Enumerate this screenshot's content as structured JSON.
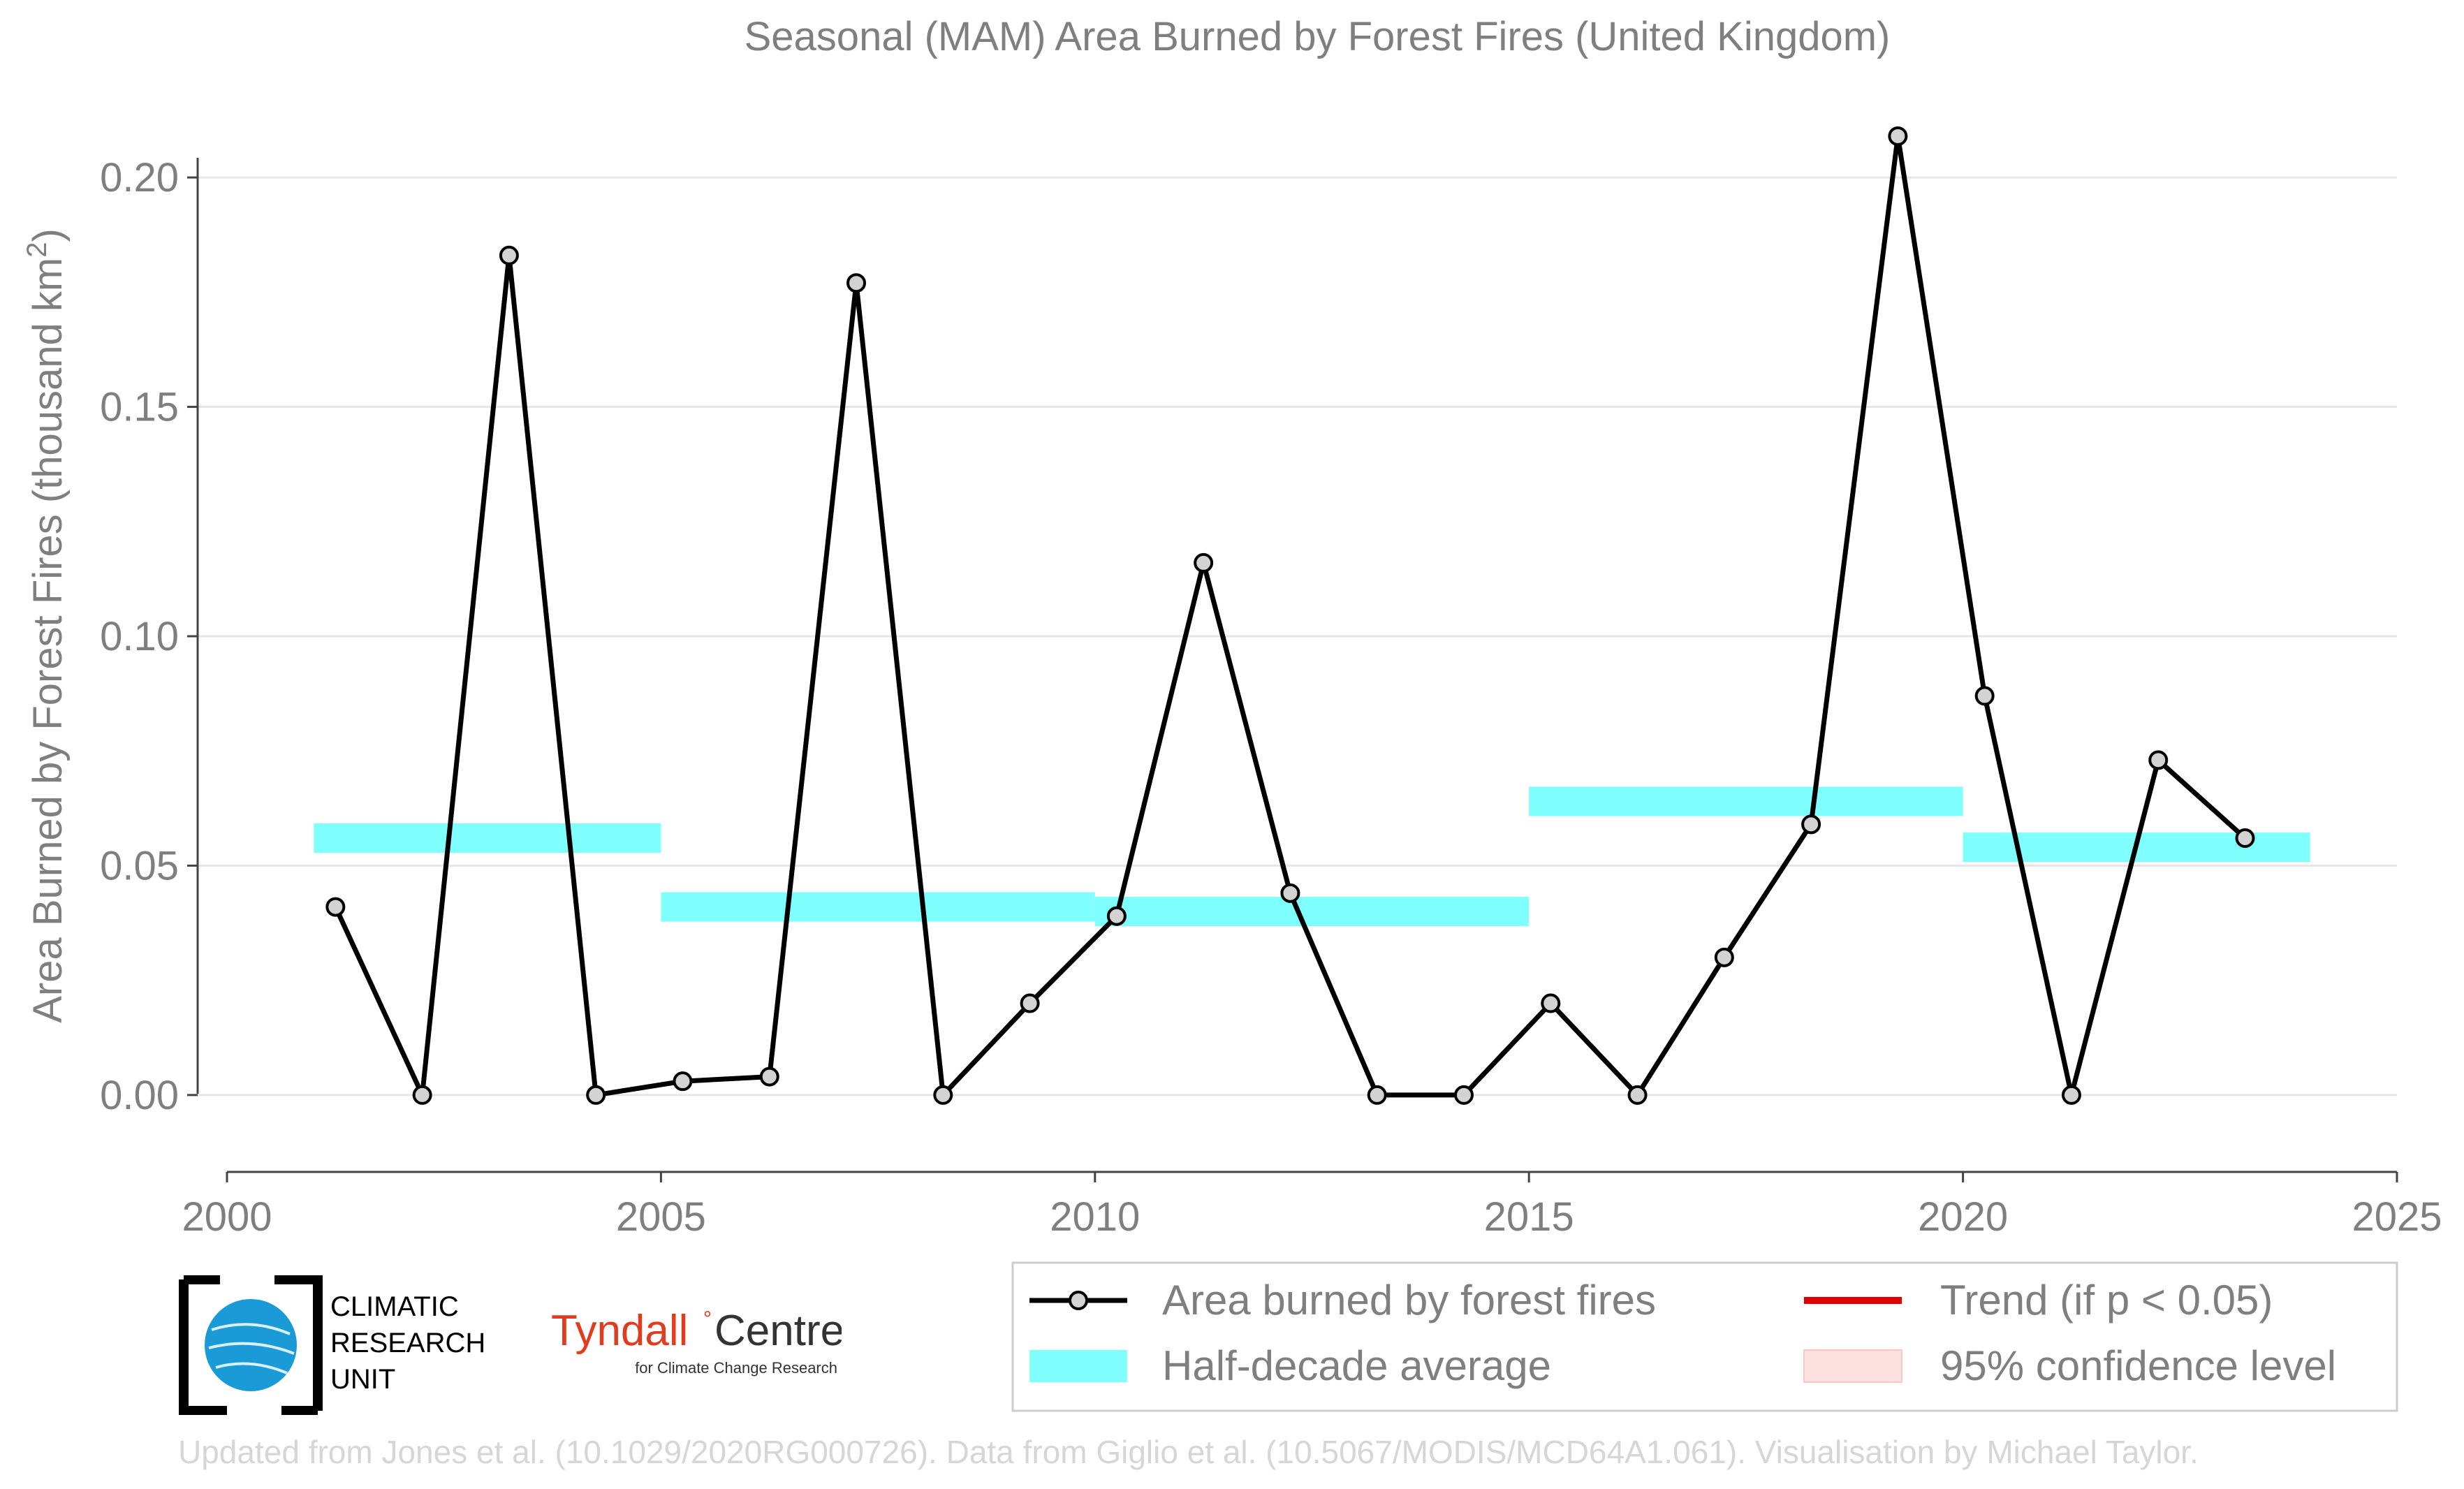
{
  "chart_data": {
    "type": "line",
    "title": "Seasonal (MAM) Area Burned by Forest Fires (United Kingdom)",
    "ylabel": "Area Burned by Forest Fires (thousand km²)",
    "xlabel": "",
    "xlim": [
      2000,
      2025
    ],
    "ylim": [
      -0.0125,
      0.2125
    ],
    "x_ticks": [
      "2000",
      "2005",
      "2010",
      "2015",
      "2020",
      "2025"
    ],
    "y_ticks": [
      "0.00",
      "0.05",
      "0.10",
      "0.15",
      "0.20"
    ],
    "grid": "horizontal",
    "series": [
      {
        "name": "Area burned by forest fires",
        "color": "#000000",
        "marker_color": "#d3d3d3",
        "x": [
          2001.25,
          2002.25,
          2003.25,
          2004.25,
          2005.25,
          2006.25,
          2007.25,
          2008.25,
          2009.25,
          2010.25,
          2011.25,
          2012.25,
          2013.25,
          2014.25,
          2015.25,
          2016.25,
          2017.25,
          2018.25,
          2019.25,
          2020.25,
          2021.25,
          2022.25,
          2023.25
        ],
        "values": [
          0.041,
          0.0,
          0.183,
          0.0,
          0.003,
          0.004,
          0.177,
          0.0,
          0.02,
          0.039,
          0.116,
          0.044,
          0.0,
          0.0,
          0.02,
          0.0,
          0.03,
          0.059,
          0.209,
          0.087,
          0.0,
          0.073,
          0.056
        ]
      }
    ],
    "half_decade_average": {
      "name": "Half-decade average",
      "color": "#80ffff",
      "segments": [
        {
          "x0": 2001,
          "x1": 2005,
          "value": 0.056
        },
        {
          "x0": 2005,
          "x1": 2010,
          "value": 0.041
        },
        {
          "x0": 2010,
          "x1": 2015,
          "value": 0.04
        },
        {
          "x0": 2015,
          "x1": 2020,
          "value": 0.064
        },
        {
          "x0": 2020,
          "x1": 2024,
          "value": 0.054
        }
      ]
    },
    "legend": {
      "placement": "bottom-right",
      "items": [
        {
          "label": "Area burned by forest fires",
          "kind": "line-marker",
          "color": "#000000"
        },
        {
          "label": "Trend (if p < 0.05)",
          "kind": "line",
          "color": "#e00000"
        },
        {
          "label": "Half-decade average",
          "kind": "band",
          "color": "#80ffff"
        },
        {
          "label": "95% confidence level",
          "kind": "band",
          "color": "#fde0e0"
        }
      ]
    }
  },
  "logos": {
    "cru": [
      "CLIMATIC",
      "RESEARCH",
      "UNIT"
    ],
    "tyndall_name": "Tyndall",
    "tyndall_centre": "Centre",
    "tyndall_sub": "for Climate Change Research"
  },
  "footer": "Updated from Jones et al. (10.1029/2020RG000726). Data from Giglio et al. (10.5067/MODIS/MCD64A1.061). Visualisation by Michael Taylor.",
  "colors": {
    "text_gray": "#7f7f7f",
    "grid": "#e6e6e6",
    "footer_gray": "#d6d6d6",
    "tyndall_red": "#e03c1f"
  }
}
